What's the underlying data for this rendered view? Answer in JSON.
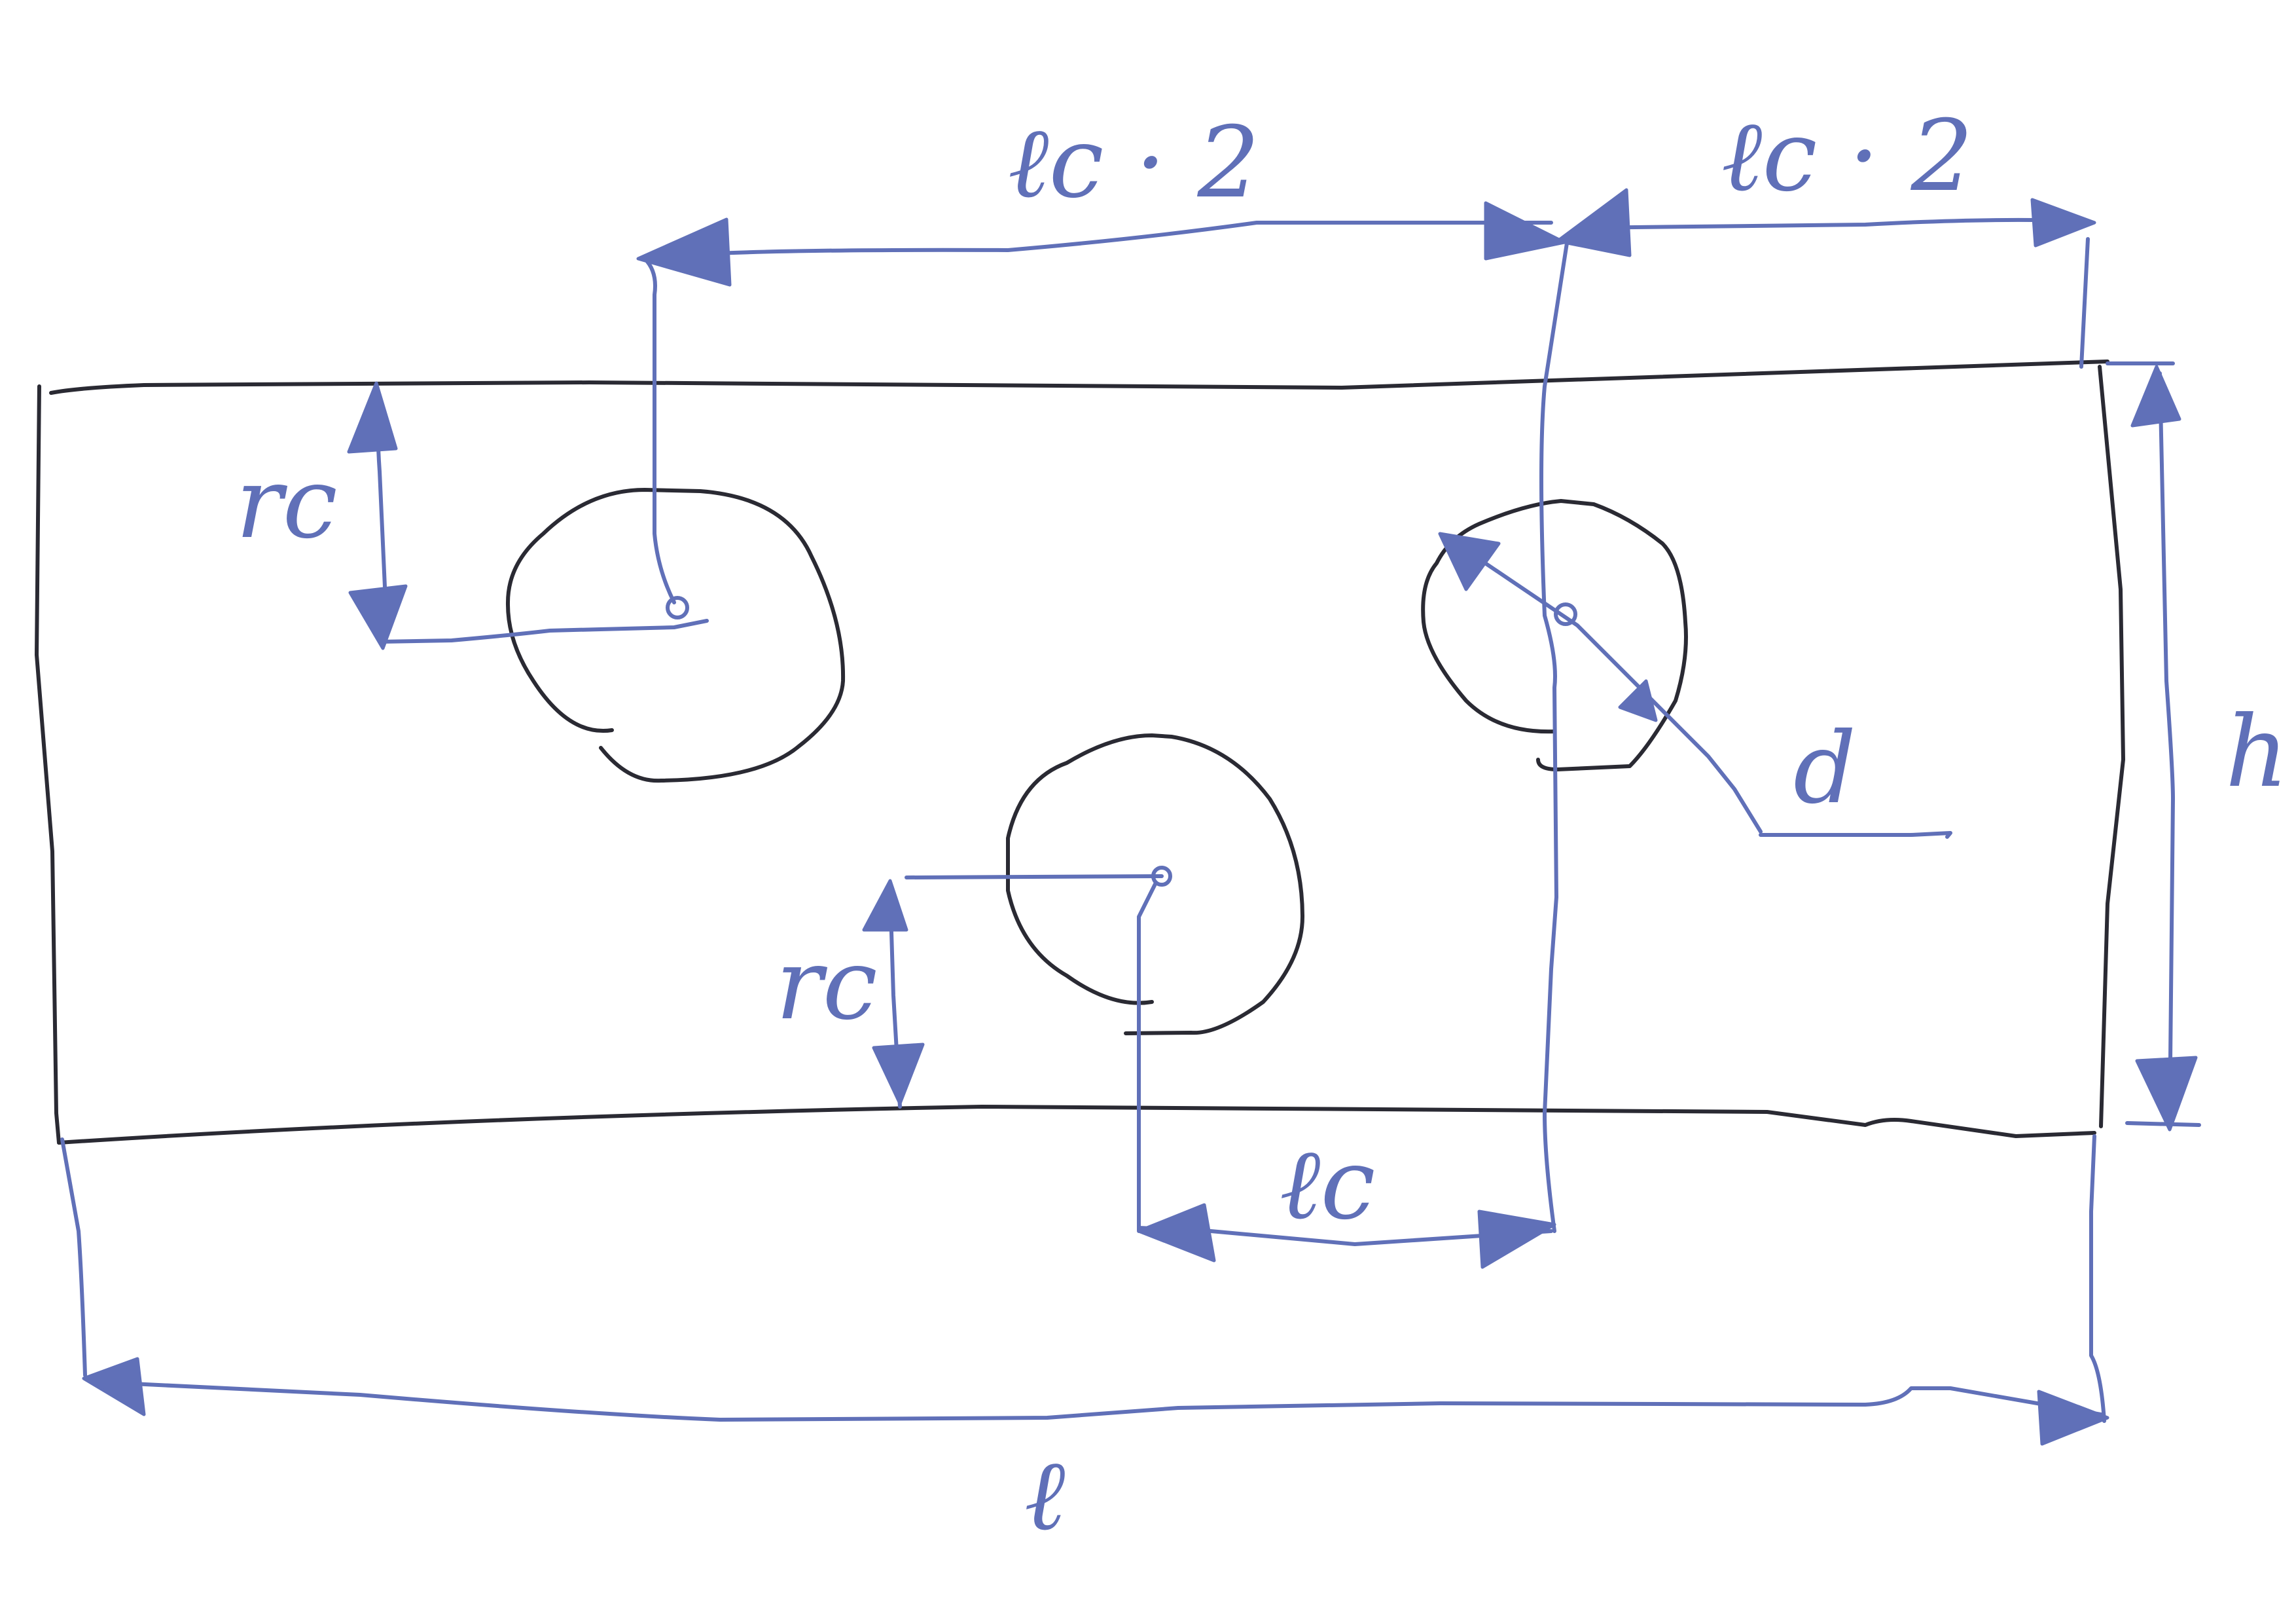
{
  "colors": {
    "outline": "#2a2a33",
    "annotation": "#6070b8",
    "background": "#ffffff"
  },
  "labels": {
    "top_left_spacing": "ℓc · 2",
    "top_right_spacing": "ℓc · 2",
    "radius_upper": "rc",
    "radius_lower": "rc",
    "height": "h",
    "diameter": "d",
    "center_spacing": "ℓc",
    "total_length": "ℓ"
  }
}
